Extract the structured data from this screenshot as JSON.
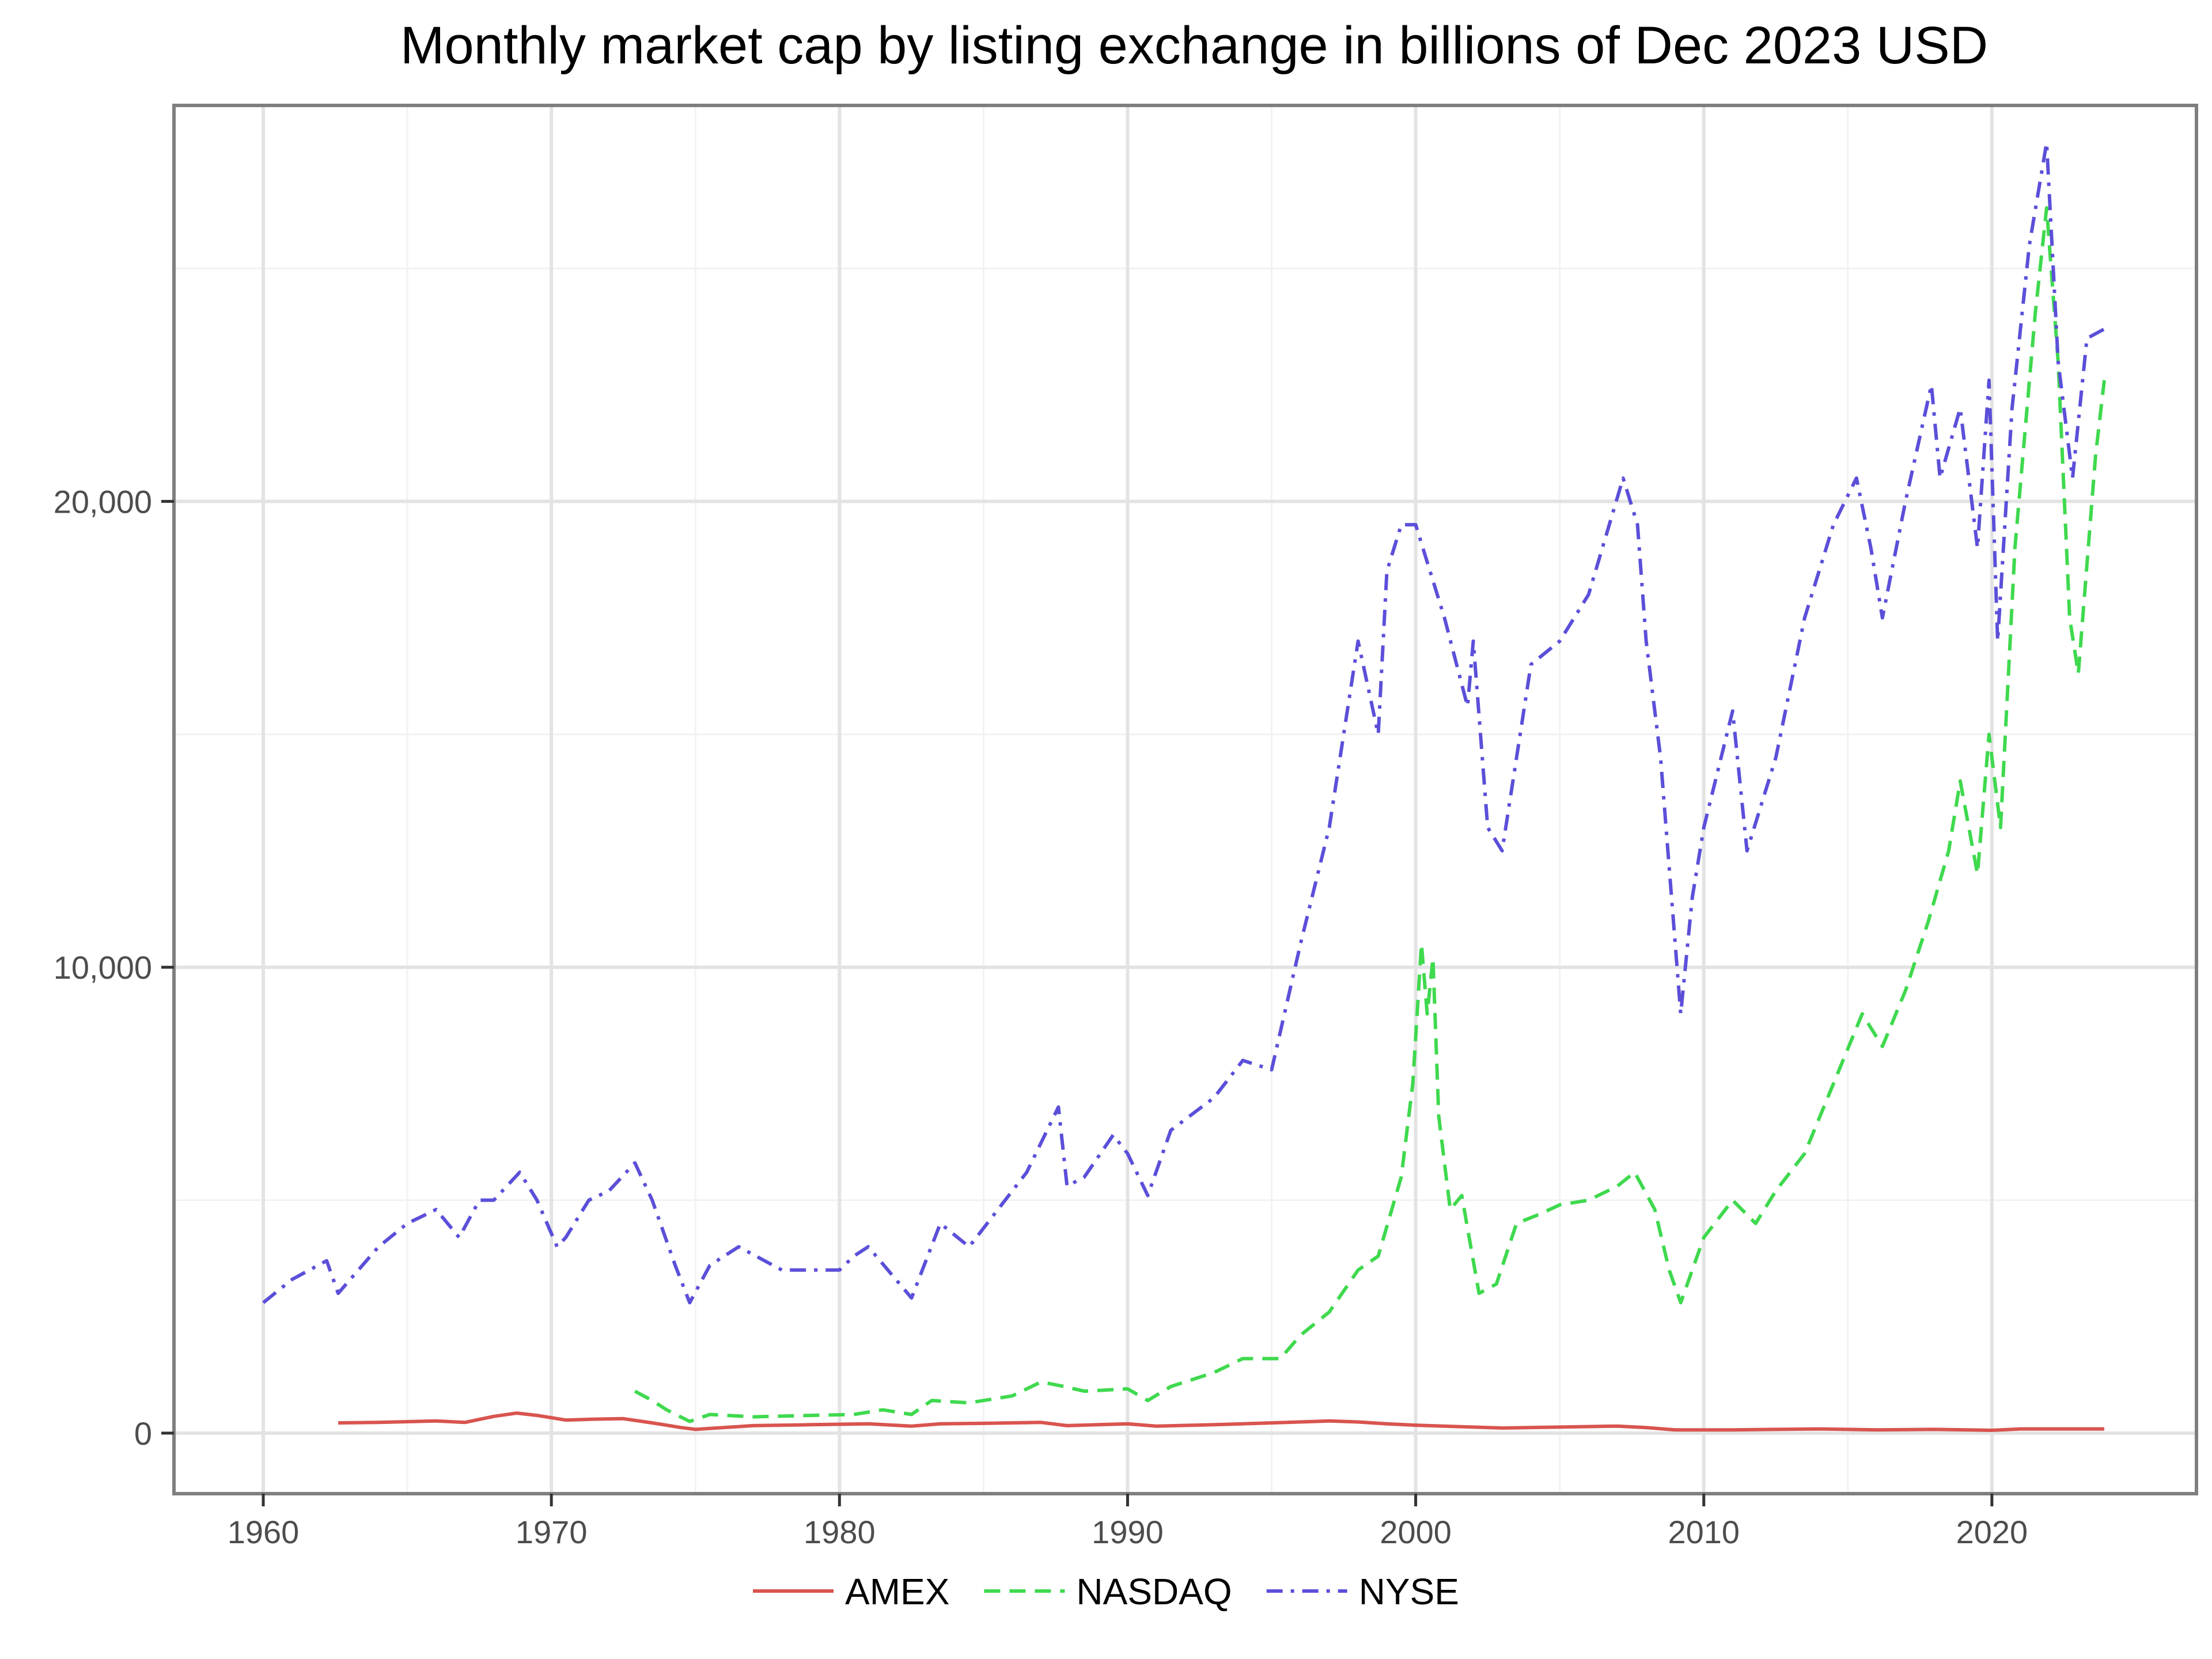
{
  "chart_data": {
    "type": "line",
    "title": "Monthly market cap by listing exchange in billions of Dec 2023 USD",
    "xlabel": "",
    "ylabel": "",
    "xlim": [
      1956.9,
      2027.1
    ],
    "ylim": [
      -1300,
      28500
    ],
    "x_ticks": [
      1960,
      1970,
      1980,
      1990,
      2000,
      2010,
      2020
    ],
    "x_tick_labels": [
      "1960",
      "1970",
      "1980",
      "1990",
      "2000",
      "2010",
      "2020"
    ],
    "y_ticks": [
      0,
      10000,
      20000
    ],
    "y_tick_labels": [
      "0",
      "10,000",
      "20,000"
    ],
    "grid": true,
    "legend_position": "bottom",
    "series": [
      {
        "name": "AMEX",
        "color": "#d9544f",
        "dash": "solid",
        "x": [
          1962.6,
          1964,
          1966,
          1967,
          1968,
          1968.8,
          1969.5,
          1970.5,
          1971.5,
          1972.5,
          1973.5,
          1974.5,
          1975,
          1977,
          1979,
          1981,
          1982.5,
          1983.5,
          1985,
          1987,
          1987.9,
          1990,
          1991,
          1993,
          1995,
          1997,
          1998,
          1999,
          2000,
          2002,
          2003,
          2005,
          2007,
          2008,
          2009,
          2011,
          2014,
          2016,
          2018,
          2020,
          2021,
          2023.9
        ],
        "y": [
          220,
          230,
          260,
          230,
          360,
          430,
          380,
          280,
          300,
          310,
          220,
          120,
          80,
          160,
          180,
          200,
          150,
          200,
          210,
          230,
          160,
          200,
          150,
          180,
          220,
          260,
          240,
          200,
          170,
          130,
          110,
          130,
          150,
          120,
          70,
          70,
          90,
          70,
          80,
          60,
          90,
          90
        ]
      },
      {
        "name": "NASDAQ",
        "color": "#3fd94e",
        "dash": "dashed",
        "x": [
          1972.9,
          1973.5,
          1974,
          1974.8,
          1975.5,
          1977,
          1979,
          1980.5,
          1981.5,
          1982.5,
          1983.2,
          1984.5,
          1986,
          1987,
          1987.8,
          1988.5,
          1990,
          1990.7,
          1991.5,
          1993,
          1994,
          1995.3,
          1996,
          1997,
          1998,
          1998.7,
          1999.5,
          1999.9,
          2000.2,
          2000.4,
          2000.6,
          2000.8,
          2001.2,
          2001.6,
          2002.2,
          2002.8,
          2003.5,
          2004.3,
          2005,
          2006,
          2007,
          2007.6,
          2008.3,
          2008.8,
          2009.2,
          2010,
          2011,
          2011.8,
          2012.5,
          2013.5,
          2014.5,
          2015.5,
          2016.2,
          2017,
          2017.8,
          2018.5,
          2018.9,
          2019.5,
          2019.9,
          2020.3,
          2020.8,
          2021.5,
          2021.9,
          2022.3,
          2022.7,
          2023,
          2023.6,
          2023.9
        ],
        "y": [
          900,
          700,
          500,
          250,
          400,
          350,
          380,
          400,
          500,
          400,
          700,
          650,
          800,
          1100,
          1000,
          900,
          950,
          700,
          1000,
          1300,
          1600,
          1600,
          2100,
          2600,
          3500,
          3800,
          5500,
          7500,
          10500,
          9000,
          10200,
          6800,
          4800,
          5100,
          3000,
          3200,
          4500,
          4700,
          4900,
          5000,
          5300,
          5600,
          4800,
          3500,
          2800,
          4200,
          5000,
          4500,
          5200,
          6000,
          7500,
          9000,
          8300,
          9500,
          11000,
          12500,
          14000,
          12000,
          15000,
          13000,
          19000,
          24000,
          26300,
          23000,
          17500,
          16300,
          21000,
          22600
        ]
      },
      {
        "name": "NYSE",
        "color": "#5b4fd9",
        "dash": "dashdot",
        "x": [
          1960,
          1961,
          1962.2,
          1962.6,
          1964,
          1965,
          1966,
          1966.8,
          1967.5,
          1968,
          1968.9,
          1969.5,
          1970.2,
          1970.5,
          1971.3,
          1972,
          1972.9,
          1973.5,
          1974.3,
          1974.8,
          1975.5,
          1976.5,
          1978,
          1980,
          1980.5,
          1981,
          1982.5,
          1983.5,
          1984.5,
          1985.5,
          1986.5,
          1987.6,
          1987.9,
          1988.5,
          1989.5,
          1990,
          1990.7,
          1991.5,
          1993,
          1994,
          1995,
          1996,
          1997,
          1998,
          1998.7,
          1999,
          1999.5,
          2000,
          2000.5,
          2001,
          2001.8,
          2002,
          2002.5,
          2003,
          2004,
          2005,
          2006,
          2007.2,
          2007.7,
          2008,
          2008.5,
          2009.2,
          2009.6,
          2010,
          2011,
          2011.5,
          2012.5,
          2013.5,
          2014.5,
          2015.3,
          2015.8,
          2016.2,
          2017,
          2017.9,
          2018.2,
          2018.9,
          2019.5,
          2019.9,
          2020.2,
          2020.7,
          2021.3,
          2021.9,
          2022.3,
          2022.8,
          2023.3,
          2023.9
        ],
        "y": [
          2800,
          3300,
          3700,
          3000,
          4000,
          4500,
          4800,
          4200,
          5000,
          5000,
          5600,
          5000,
          4000,
          4200,
          5000,
          5200,
          5800,
          5000,
          3600,
          2800,
          3600,
          4000,
          3500,
          3500,
          3800,
          4000,
          2900,
          4500,
          4000,
          4800,
          5600,
          7000,
          5300,
          5500,
          6400,
          6000,
          5100,
          6500,
          7200,
          8000,
          7800,
          10500,
          13000,
          17000,
          15000,
          18500,
          19500,
          19500,
          18500,
          17500,
          15600,
          17000,
          13000,
          12500,
          16500,
          17000,
          18000,
          20500,
          19500,
          17000,
          14500,
          9000,
          11500,
          13000,
          15500,
          12500,
          14500,
          17500,
          19500,
          20500,
          19000,
          17500,
          20000,
          22500,
          20500,
          22000,
          19000,
          22600,
          17000,
          22000,
          25500,
          27700,
          23000,
          20500,
          23500,
          23700
        ]
      }
    ]
  }
}
